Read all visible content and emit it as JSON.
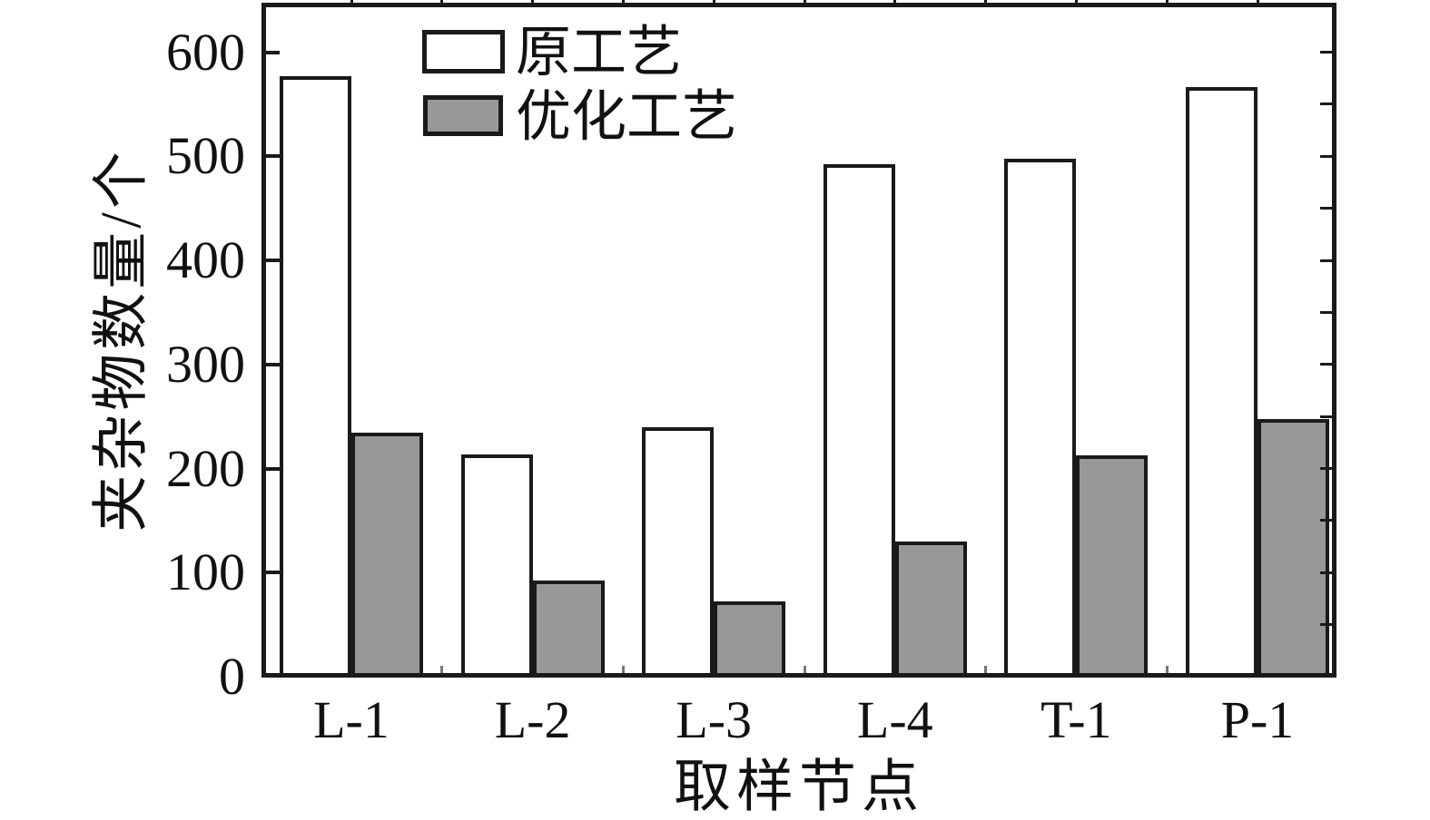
{
  "chart_data": {
    "type": "bar",
    "title": "",
    "categories": [
      "L-1",
      "L-2",
      "L-3",
      "L-4",
      "T-1",
      "P-1"
    ],
    "series": [
      {
        "name": "原工艺",
        "key": "original",
        "fill": "#ffffff",
        "values": [
          575,
          212,
          238,
          491,
          496,
          565
        ]
      },
      {
        "name": "优化工艺",
        "key": "optimized",
        "fill": "#989898",
        "values": [
          233,
          91,
          71,
          128,
          211,
          246
        ]
      }
    ],
    "xlabel": "取样节点",
    "ylabel": "夹杂物数量/个",
    "ylim": [
      0,
      645
    ],
    "yticks": [
      0,
      100,
      200,
      300,
      400,
      500,
      600
    ],
    "y_minor_tick_step_right_axis": 50,
    "grid": false,
    "legend_position": "top-left-inside",
    "bar_outline_color": "#1a1a1a",
    "background_color": "#ffffff"
  }
}
